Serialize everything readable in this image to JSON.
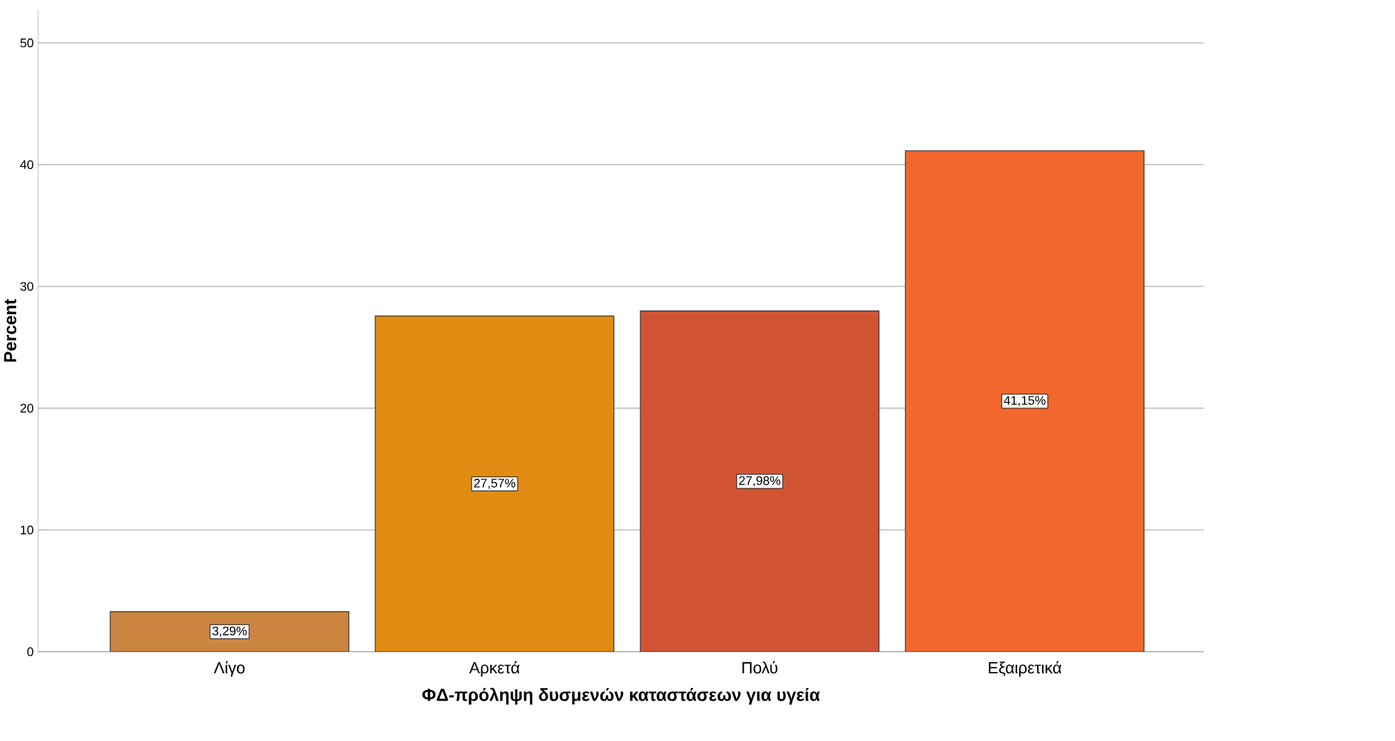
{
  "chart_data": {
    "type": "bar",
    "xlabel": "ΦΔ-πρόληψη δυσμενών καταστάσεων για υγεία",
    "ylabel": "Percent",
    "categories": [
      "Λίγο",
      "Αρκετά",
      "Πολύ",
      "Εξαιρετικά"
    ],
    "values": [
      3.29,
      27.57,
      27.98,
      41.15
    ],
    "colors": [
      "#cc8541",
      "#e08b11",
      "#d05434",
      "#f2672d"
    ],
    "value_labels": [
      "3,29%",
      "27,57%",
      "27,98%",
      "41,15%"
    ],
    "ylim": [
      0,
      52.7
    ],
    "yticks": [
      0,
      10,
      20,
      30,
      40,
      50
    ],
    "grid": "y"
  }
}
